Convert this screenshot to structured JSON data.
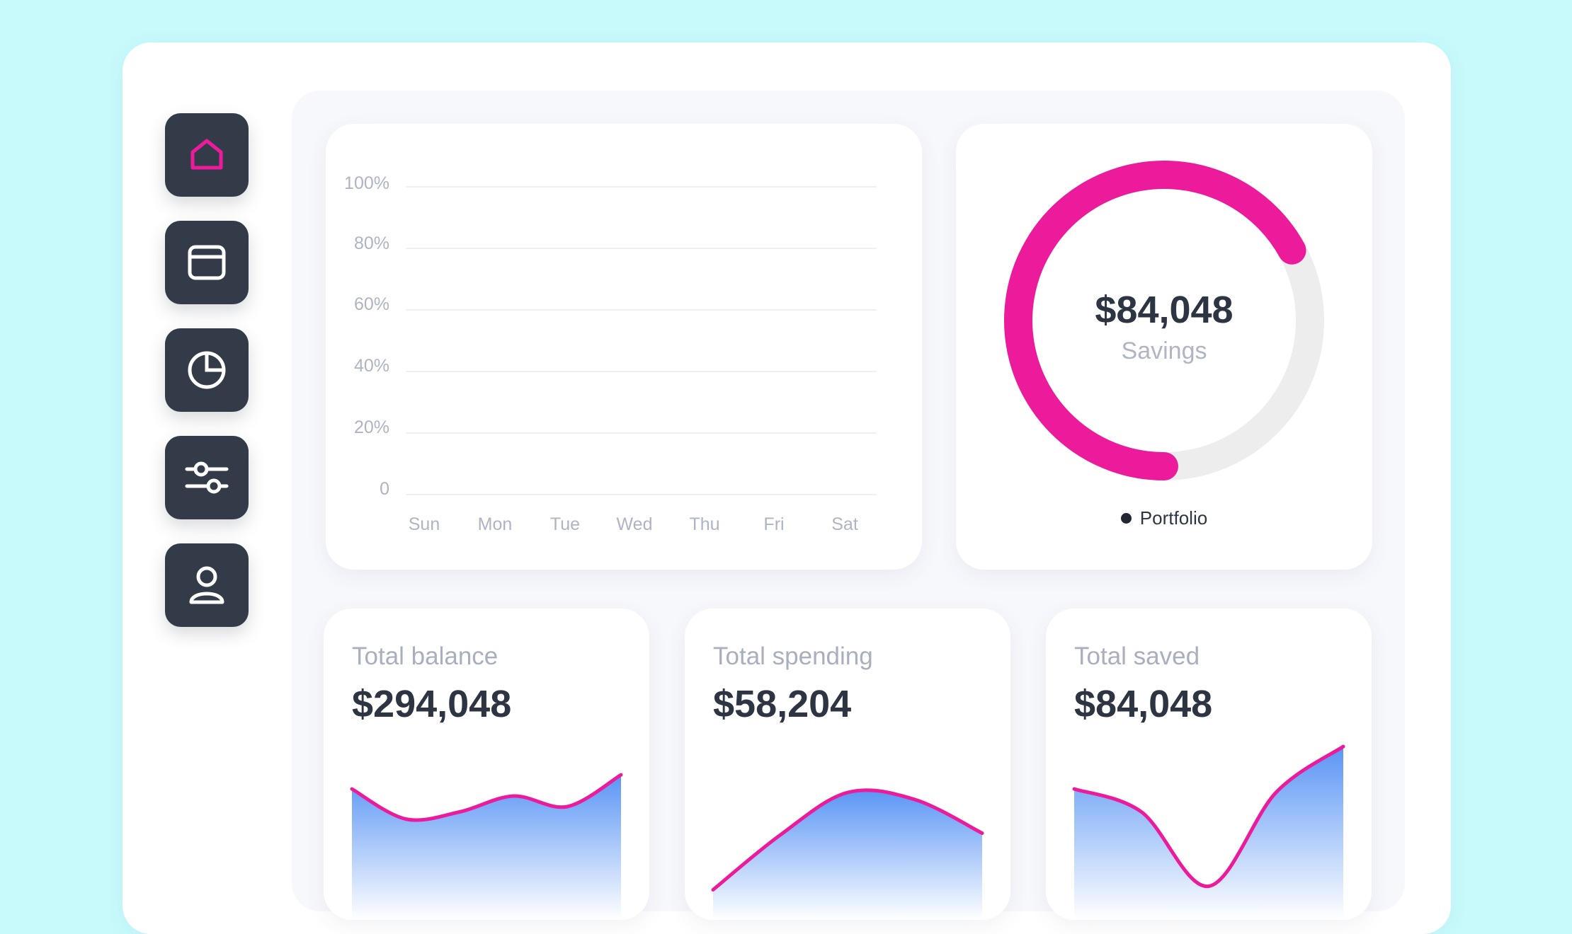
{
  "nav": {
    "items": [
      {
        "id": "home",
        "icon": "home-icon",
        "active": true
      },
      {
        "id": "wallet",
        "icon": "wallet-icon",
        "active": false
      },
      {
        "id": "reports",
        "icon": "pie-chart-icon",
        "active": false
      },
      {
        "id": "settings",
        "icon": "sliders-icon",
        "active": false
      },
      {
        "id": "profile",
        "icon": "user-icon",
        "active": false
      }
    ],
    "active_color": "#ec1b9b",
    "icon_color": "#ffffff"
  },
  "chart_data": [
    {
      "type": "bar",
      "title": "",
      "categories": [
        "Sun",
        "Mon",
        "Tue",
        "Wed",
        "Thu",
        "Fri",
        "Sat"
      ],
      "y_ticks": [
        "0",
        "20%",
        "40%",
        "60%",
        "80%",
        "100%"
      ],
      "ylim": [
        0,
        100
      ],
      "series": [],
      "grid": true
    },
    {
      "type": "pie",
      "subtype": "donut",
      "center_value": "$84,048",
      "center_label": "Savings",
      "legend": [
        "Portfolio"
      ],
      "values": [
        67,
        33
      ],
      "colors": [
        "#ec1b9b",
        "#ededed"
      ]
    },
    {
      "type": "area",
      "title": "Total balance",
      "value": "$294,048",
      "values": [
        62,
        45,
        49,
        58,
        52,
        70
      ]
    },
    {
      "type": "area",
      "title": "Total spending",
      "value": "$58,204",
      "values": [
        5,
        36,
        60,
        56,
        37
      ]
    },
    {
      "type": "area",
      "title": "Total saved",
      "value": "$84,048",
      "values": [
        62,
        49,
        7,
        60,
        86
      ]
    }
  ],
  "colors": {
    "accent": "#ec1b9b",
    "area_top": "#5a95f5",
    "area_bottom": "#ffffff"
  }
}
